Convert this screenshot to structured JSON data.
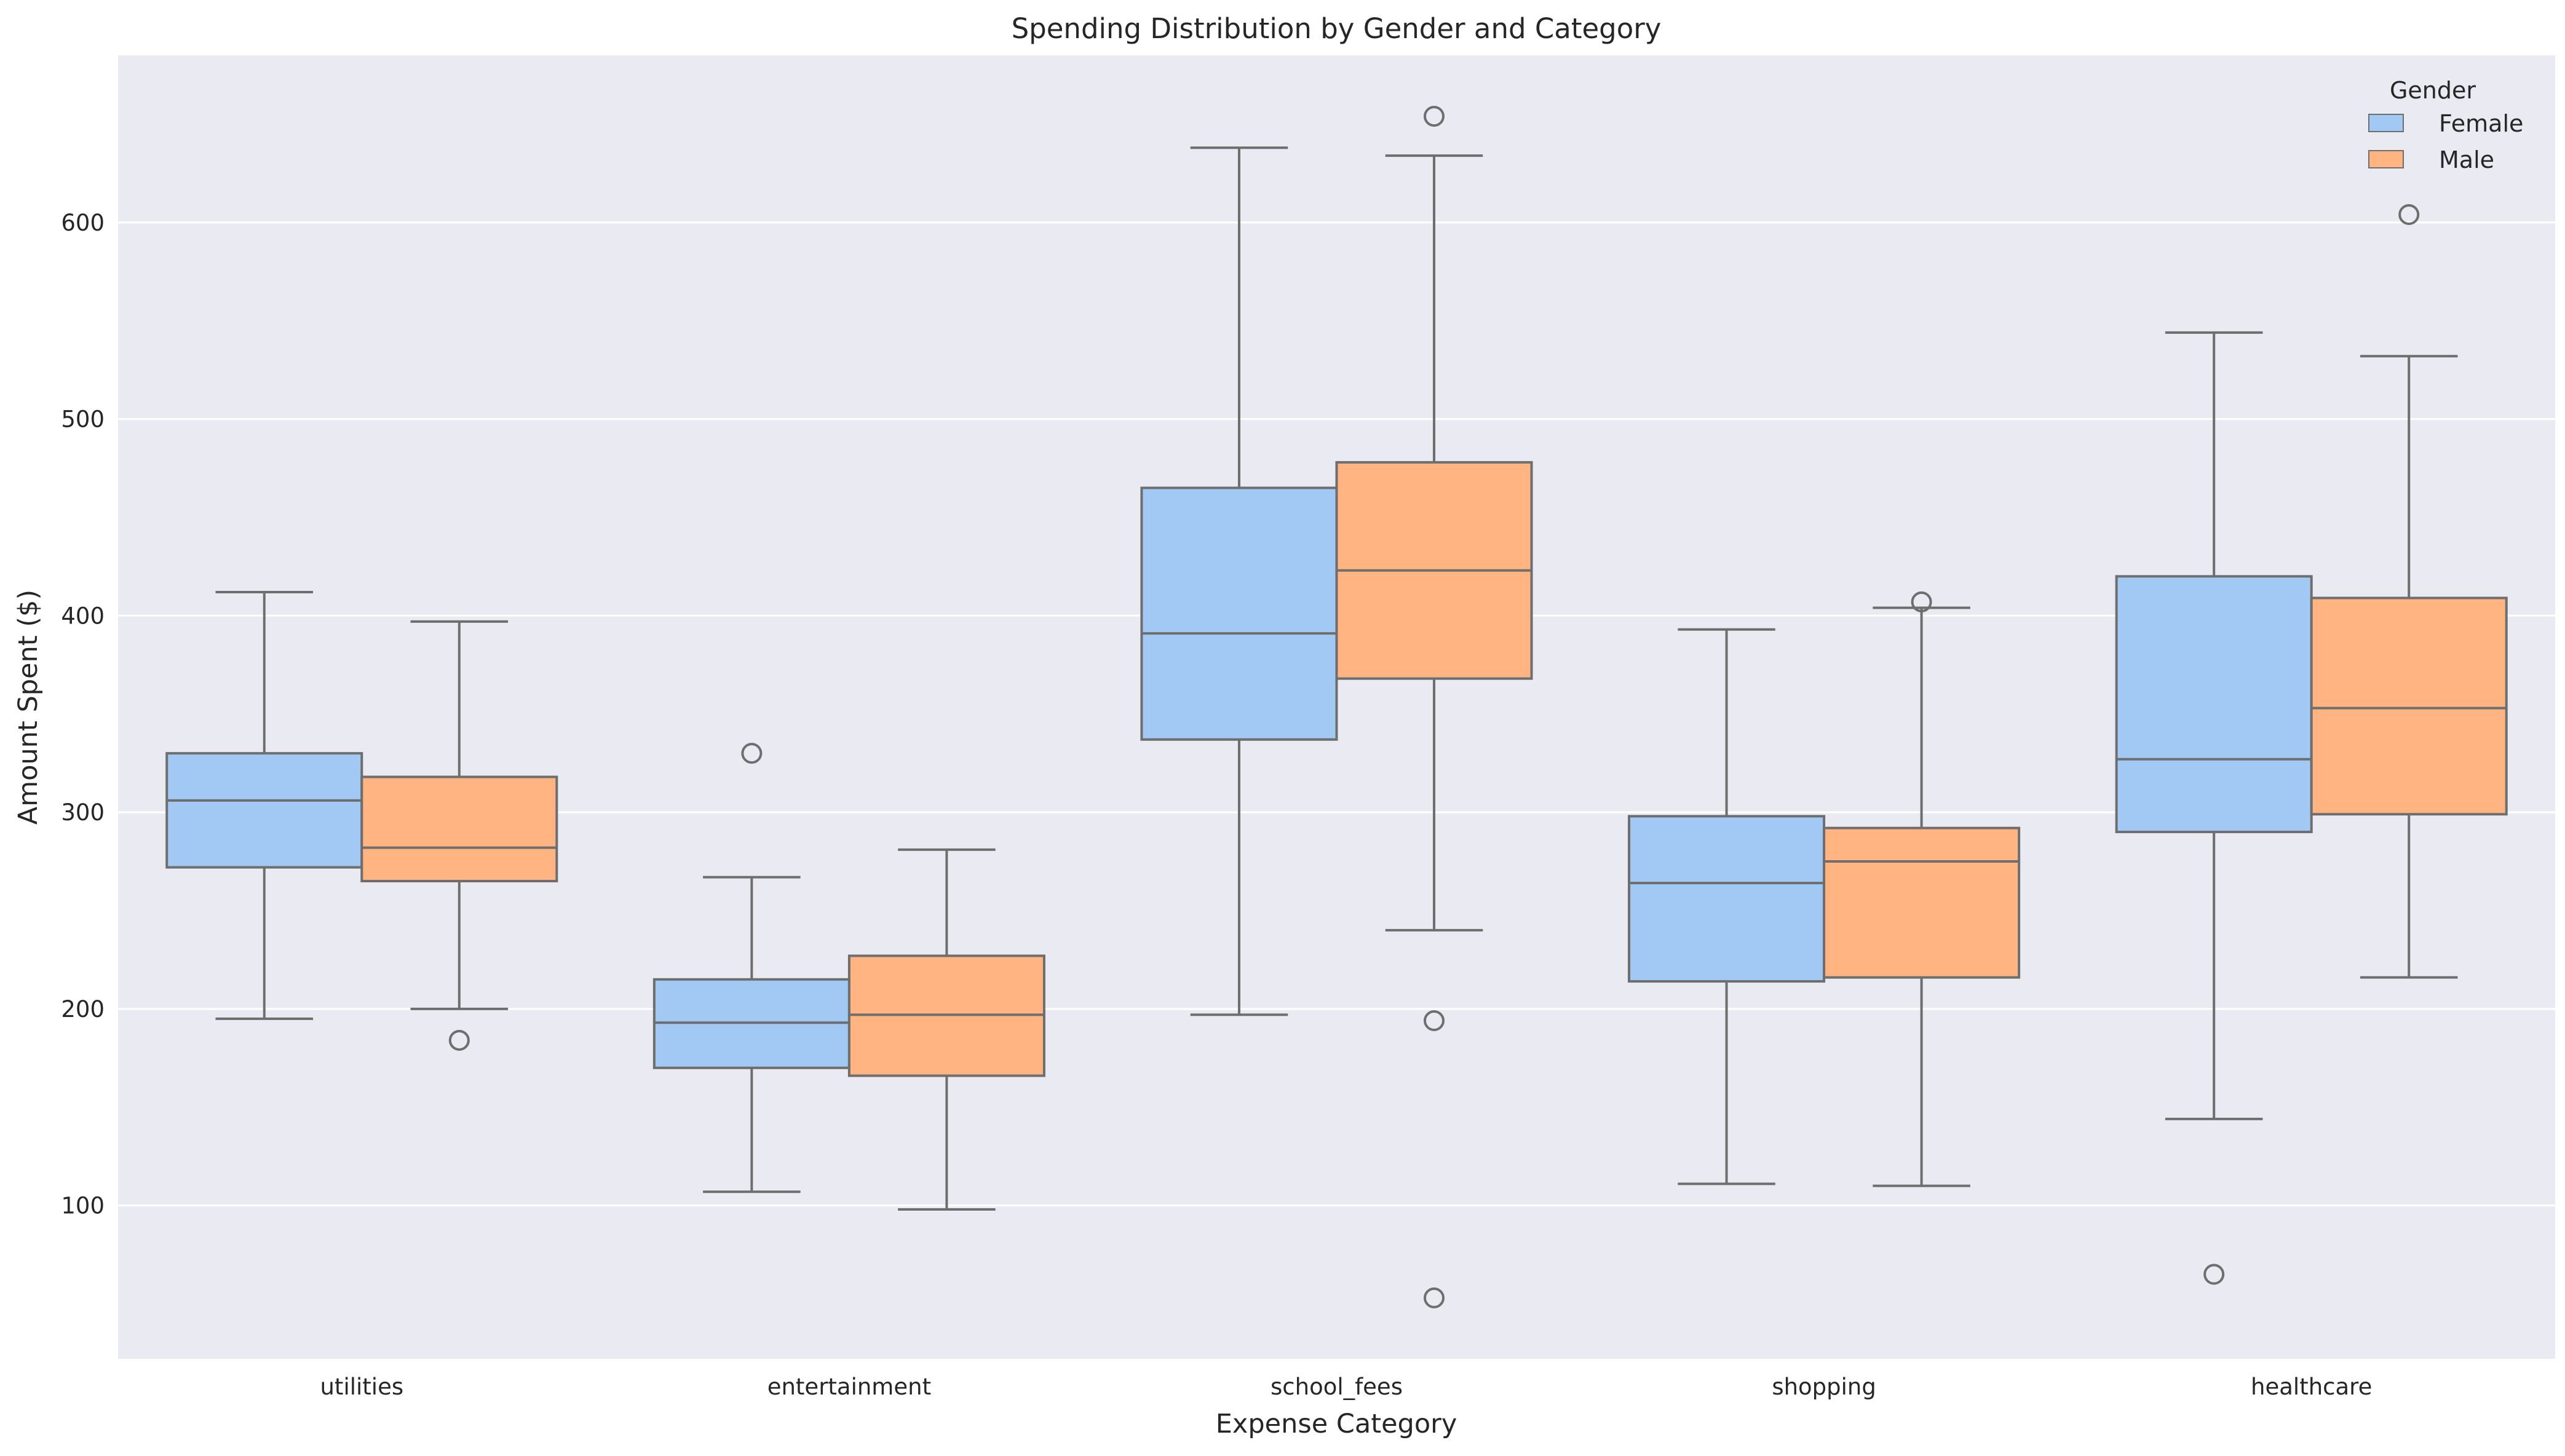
{
  "chart_data": {
    "type": "box",
    "title": "Spending Distribution by Gender and Category",
    "xlabel": "Expense Category",
    "ylabel": "Amount Spent ($)",
    "ylim": [
      22,
      685
    ],
    "yticks": [
      100,
      200,
      300,
      400,
      500,
      600
    ],
    "grid": true,
    "legend": {
      "title": "Gender",
      "placement": "top-right"
    },
    "categories": [
      "utilities",
      "entertainment",
      "school_fees",
      "shopping",
      "healthcare"
    ],
    "series": [
      {
        "name": "Female",
        "color": "#a1c9f4",
        "boxes": [
          {
            "whisker_low": 195,
            "q1": 272,
            "median": 306,
            "q3": 330,
            "whisker_high": 412,
            "outliers": []
          },
          {
            "whisker_low": 107,
            "q1": 170,
            "median": 193,
            "q3": 215,
            "whisker_high": 267,
            "outliers": [
              330
            ]
          },
          {
            "whisker_low": 197,
            "q1": 337,
            "median": 391,
            "q3": 465,
            "whisker_high": 638,
            "outliers": []
          },
          {
            "whisker_low": 111,
            "q1": 214,
            "median": 264,
            "q3": 298,
            "whisker_high": 393,
            "outliers": []
          },
          {
            "whisker_low": 144,
            "q1": 290,
            "median": 327,
            "q3": 420,
            "whisker_high": 544,
            "outliers": [
              65
            ]
          }
        ]
      },
      {
        "name": "Male",
        "color": "#ffb482",
        "boxes": [
          {
            "whisker_low": 200,
            "q1": 265,
            "median": 282,
            "q3": 318,
            "whisker_high": 397,
            "outliers": [
              184
            ]
          },
          {
            "whisker_low": 98,
            "q1": 166,
            "median": 197,
            "q3": 227,
            "whisker_high": 281,
            "outliers": []
          },
          {
            "whisker_low": 240,
            "q1": 368,
            "median": 423,
            "q3": 478,
            "whisker_high": 634,
            "outliers": [
              654,
              194,
              53
            ]
          },
          {
            "whisker_low": 110,
            "q1": 216,
            "median": 275,
            "q3": 292,
            "whisker_high": 404,
            "outliers": [
              407
            ]
          },
          {
            "whisker_low": 216,
            "q1": 299,
            "median": 353,
            "q3": 409,
            "whisker_high": 532,
            "outliers": [
              604
            ]
          }
        ]
      }
    ]
  }
}
